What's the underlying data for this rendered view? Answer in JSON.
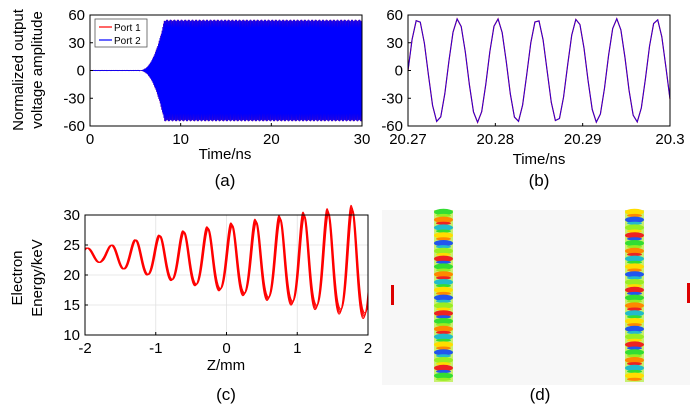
{
  "chart_data": [
    {
      "id": "a",
      "type": "line",
      "caption": "(a)",
      "xlabel": "Time/ns",
      "ylabel_lines": [
        "Normalized output",
        "voltage amplitude"
      ],
      "xlim": [
        0,
        30
      ],
      "ylim": [
        -60,
        60
      ],
      "xticks": [
        0,
        10,
        20,
        30
      ],
      "yticks": [
        60,
        30,
        0,
        -30,
        -60
      ],
      "legend_position": "top-left",
      "series": [
        {
          "name": "Port 1",
          "color": "#ff0000"
        },
        {
          "name": "Port 2",
          "color": "#0000ff"
        }
      ],
      "envelope": {
        "onset_ns": 5.5,
        "saturation_ns": 8.2,
        "amplitude": 55
      }
    },
    {
      "id": "b",
      "type": "line",
      "caption": "(b)",
      "xlabel": "Time/ns",
      "xlim": [
        20.27,
        20.3
      ],
      "ylim": [
        -60,
        60
      ],
      "xticks": [
        "20.27",
        "20.28",
        "20.29",
        "20.3"
      ],
      "yticks": [
        60,
        30,
        0,
        -30,
        -60
      ],
      "series": [
        {
          "name": "Port 1",
          "color": "#ff0000"
        },
        {
          "name": "Port 2",
          "color": "#0000ff"
        }
      ],
      "signal": {
        "amplitude": 56,
        "period_ns": 0.00455,
        "phase_ns": 0.00114
      }
    },
    {
      "id": "c",
      "type": "scatter",
      "caption": "(c)",
      "xlabel": "Z/mm",
      "ylabel_lines": [
        "Electron",
        "Energy/keV"
      ],
      "xlim": [
        -2,
        2
      ],
      "ylim": [
        10,
        30
      ],
      "xticks": [
        -2,
        -1,
        0,
        1,
        2
      ],
      "yticks": [
        30,
        25,
        20,
        15,
        10
      ],
      "grid": true,
      "color": "#ff0000",
      "base_energy_keV": 23.3
    },
    {
      "id": "d",
      "type": "heatmap",
      "caption": "(d)",
      "beam_colors": [
        "#33dd33",
        "#99ee22",
        "#ffdd00",
        "#ff8800",
        "#ee2222",
        "#2255ee",
        "#22bbcc"
      ],
      "marker_color": "#dd0000"
    }
  ]
}
